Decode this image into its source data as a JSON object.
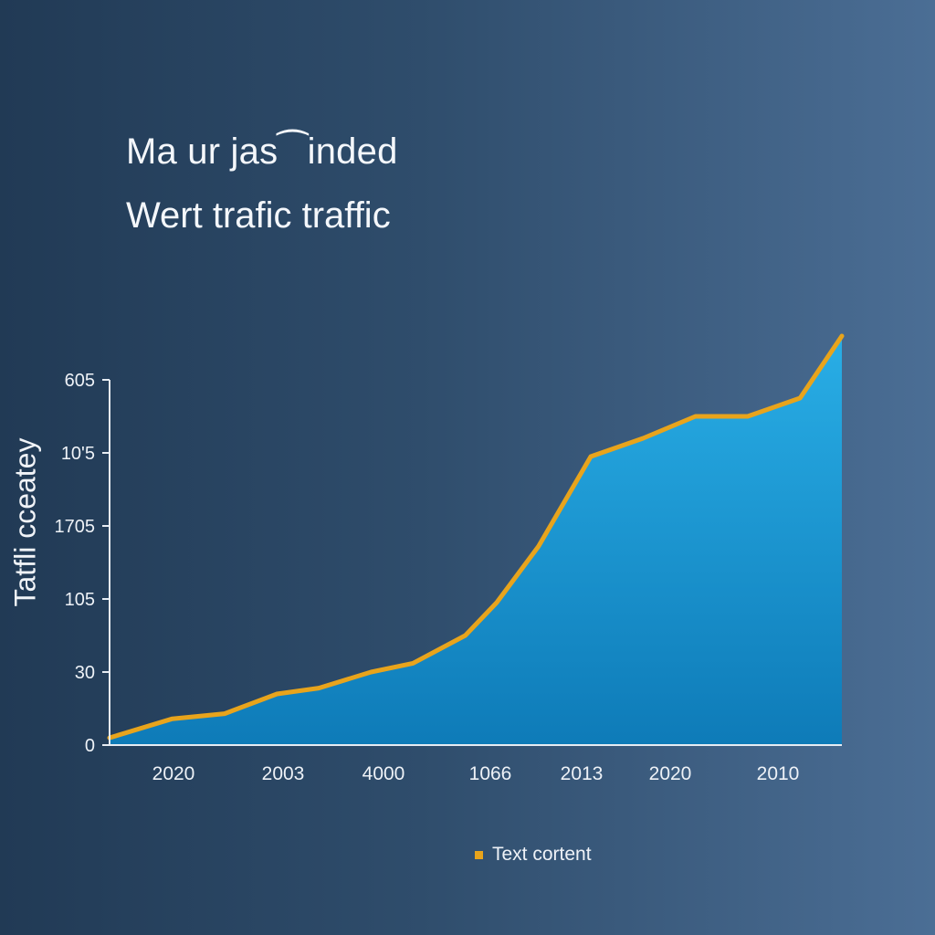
{
  "chart_data": {
    "type": "area",
    "title": "Ma ur jas⁀inded",
    "subtitle": "Wert trafic traffic",
    "ylabel": "Tatfli cceatey",
    "xlabel": "",
    "y_tick_labels": [
      "0",
      "30",
      "105",
      "1705",
      "10'5",
      "605"
    ],
    "x_tick_labels": [
      "2020",
      "2003",
      "4000",
      "1066",
      "2013",
      "2020",
      "2010"
    ],
    "ylim": [
      0,
      5
    ],
    "series": [
      {
        "name": "Text cortent",
        "x": [
          0,
          0.6,
          1.1,
          1.6,
          2.0,
          2.5,
          2.9,
          3.4,
          3.7,
          4.1,
          4.6,
          5.1,
          5.6,
          6.1,
          6.6,
          7.0
        ],
        "values": [
          0.1,
          0.36,
          0.43,
          0.7,
          0.78,
          1.0,
          1.12,
          1.5,
          1.95,
          2.72,
          3.95,
          4.2,
          4.5,
          4.5,
          4.75,
          5.6
        ]
      }
    ],
    "colors": {
      "line": "#e8a41c",
      "fill_top": "#29aee6",
      "fill_bottom": "#0e7bb8",
      "axis": "#e6ecf3"
    }
  },
  "legend": {
    "label": "Text cortent"
  }
}
